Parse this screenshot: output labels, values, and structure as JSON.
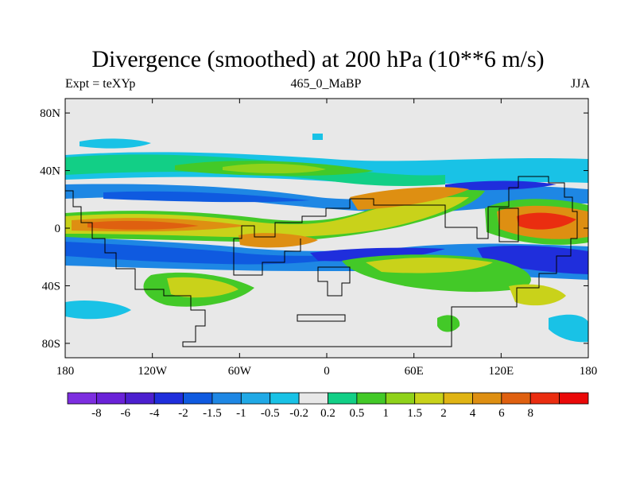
{
  "title": "Divergence (smoothed) at 200 hPa (10**6 m/s)",
  "subtitle_left": "Expt = teXYp",
  "subtitle_center": "465_0_MaBP",
  "subtitle_right": "JJA",
  "axes": {
    "x_range": [
      -180,
      180
    ],
    "y_range": [
      -90,
      90
    ],
    "x_ticks": [
      {
        "value": -180,
        "label": "180"
      },
      {
        "value": -120,
        "label": "120W"
      },
      {
        "value": -60,
        "label": "60W"
      },
      {
        "value": 0,
        "label": "0"
      },
      {
        "value": 60,
        "label": "60E"
      },
      {
        "value": 120,
        "label": "120E"
      },
      {
        "value": 180,
        "label": "180"
      }
    ],
    "y_ticks": [
      {
        "value": 80,
        "label": "80N"
      },
      {
        "value": 40,
        "label": "40N"
      },
      {
        "value": 0,
        "label": "0"
      },
      {
        "value": -40,
        "label": "40S"
      },
      {
        "value": -80,
        "label": "80S"
      }
    ]
  },
  "colorbar": {
    "colors": [
      "#7d2ee0",
      "#6a22d8",
      "#4c1fcf",
      "#1f2edc",
      "#0f5ae0",
      "#1e87e4",
      "#20a9e6",
      "#19c2e6",
      "#e8e8e8",
      "#12cf86",
      "#43c928",
      "#8fd21a",
      "#c9d21a",
      "#e0b414",
      "#de8f12",
      "#df6010",
      "#ea2d10",
      "#ea0808"
    ],
    "labels": [
      "-8",
      "-6",
      "-4",
      "-2",
      "-1.5",
      "-1",
      "-0.5",
      "-0.2",
      "0.2",
      "0.5",
      "1",
      "1.5",
      "2",
      "4",
      "6",
      "8"
    ]
  }
}
